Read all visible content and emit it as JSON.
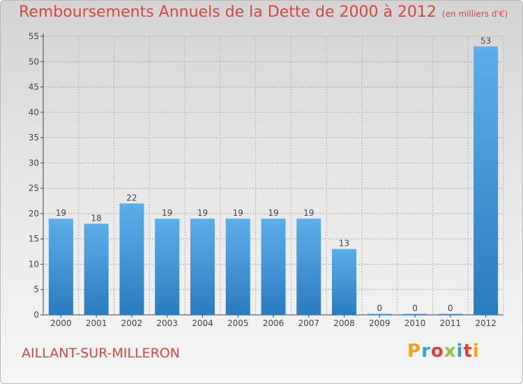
{
  "header": {
    "title": "Remboursements Annuels de la Dette de 2000 à 2012",
    "unit": "(en milliers d'€)"
  },
  "footer": {
    "commune": "AILLANT-SUR-MILLERON",
    "logo_letters": [
      "P",
      "r",
      "o",
      "x",
      "i",
      "t",
      "i"
    ],
    "logo_colors": [
      "#f0a21b",
      "#2fa3dc",
      "#e83d33",
      "#8cc641",
      "#2fa3dc",
      "#e83d33",
      "#f0a21b"
    ]
  },
  "chart_data": {
    "type": "bar",
    "title": "Remboursements Annuels de la Dette de 2000 à 2012",
    "xlabel": "",
    "ylabel": "",
    "categories": [
      "2000",
      "2001",
      "2002",
      "2003",
      "2004",
      "2005",
      "2006",
      "2007",
      "2008",
      "2009",
      "2010",
      "2011",
      "2012"
    ],
    "values": [
      19,
      18,
      22,
      19,
      19,
      19,
      19,
      19,
      13,
      0,
      0,
      0,
      53
    ],
    "value_labels": [
      "19",
      "18",
      "22",
      "19",
      "19",
      "19",
      "19",
      "19",
      "13",
      "0",
      "0",
      "0",
      "53"
    ],
    "ylim": [
      0,
      55
    ],
    "yticks": [
      0,
      5,
      10,
      15,
      20,
      25,
      30,
      35,
      40,
      45,
      50,
      55
    ],
    "grid": true,
    "bar_color": "#3d92d4"
  }
}
